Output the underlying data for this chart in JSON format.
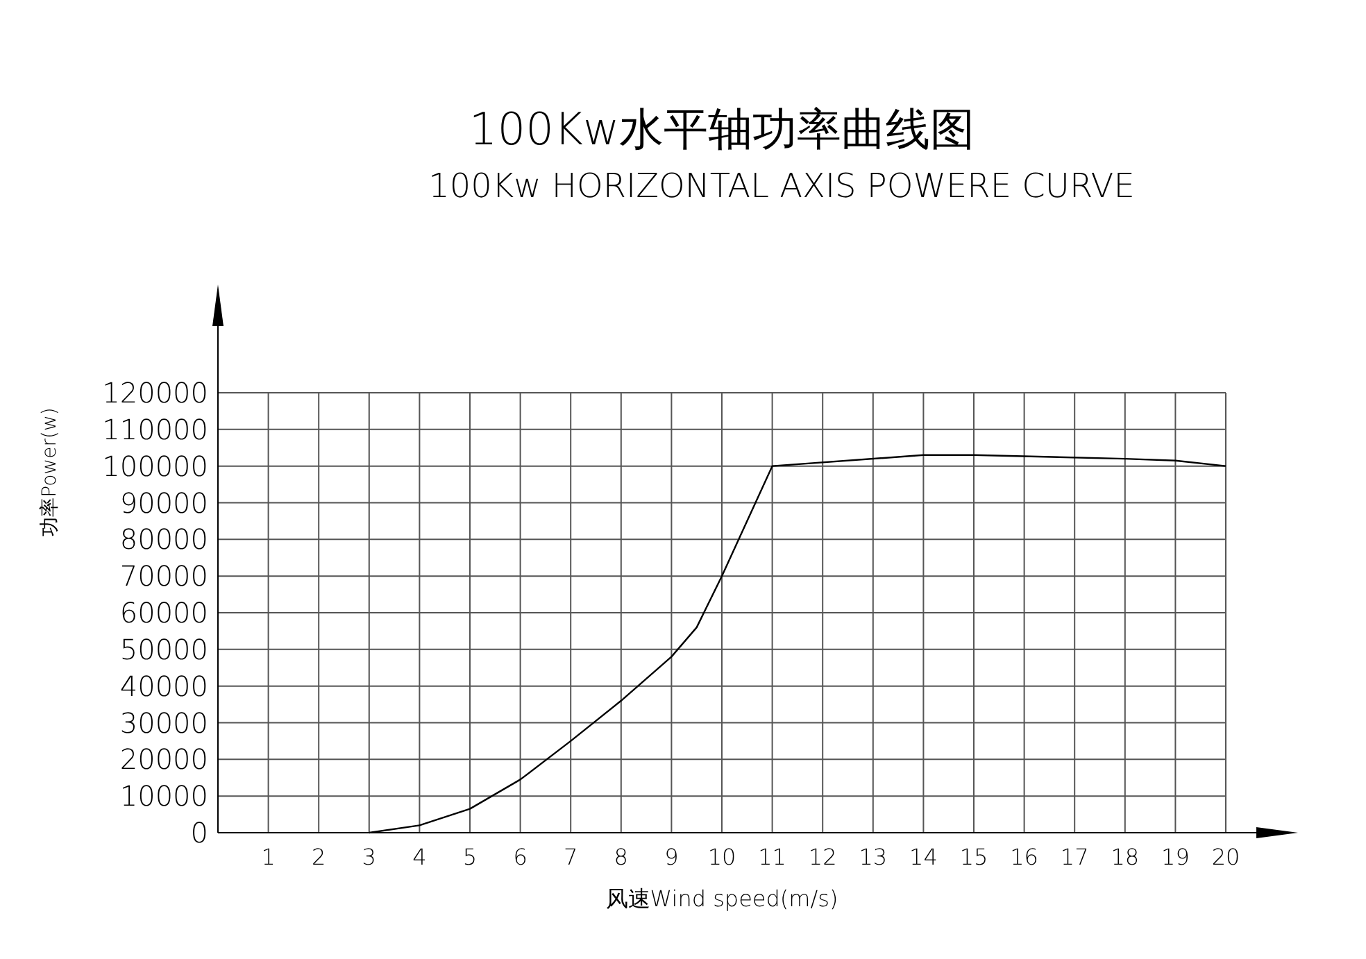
{
  "chart_data": {
    "type": "line",
    "title": "100Kw水平轴功率曲线图",
    "subtitle": "100Kw HORIZONTAL AXIS POWERE CURVE",
    "xlabel": "风速Wind speed(m/s)",
    "ylabel": "功率Power(w)",
    "x": [
      3,
      4,
      5,
      6,
      7,
      8,
      9,
      9.5,
      10,
      11,
      14,
      15,
      18,
      19,
      20
    ],
    "series": [
      {
        "color": "#000000",
        "values": [
          0,
          2000,
          6500,
          14500,
          25000,
          36000,
          48000,
          56000,
          70000,
          100000,
          103000,
          103000,
          102000,
          101500,
          100000
        ]
      }
    ],
    "xlim": [
      0,
      20
    ],
    "xticks": [
      1,
      2,
      3,
      4,
      5,
      6,
      7,
      8,
      9,
      10,
      11,
      12,
      13,
      14,
      15,
      16,
      17,
      18,
      19,
      20
    ],
    "ylim": [
      0,
      120000
    ],
    "yticks": [
      0,
      10000,
      20000,
      30000,
      40000,
      50000,
      60000,
      70000,
      80000,
      90000,
      100000,
      110000,
      120000
    ],
    "grid": true,
    "marker": "none",
    "line_style": "solid"
  }
}
